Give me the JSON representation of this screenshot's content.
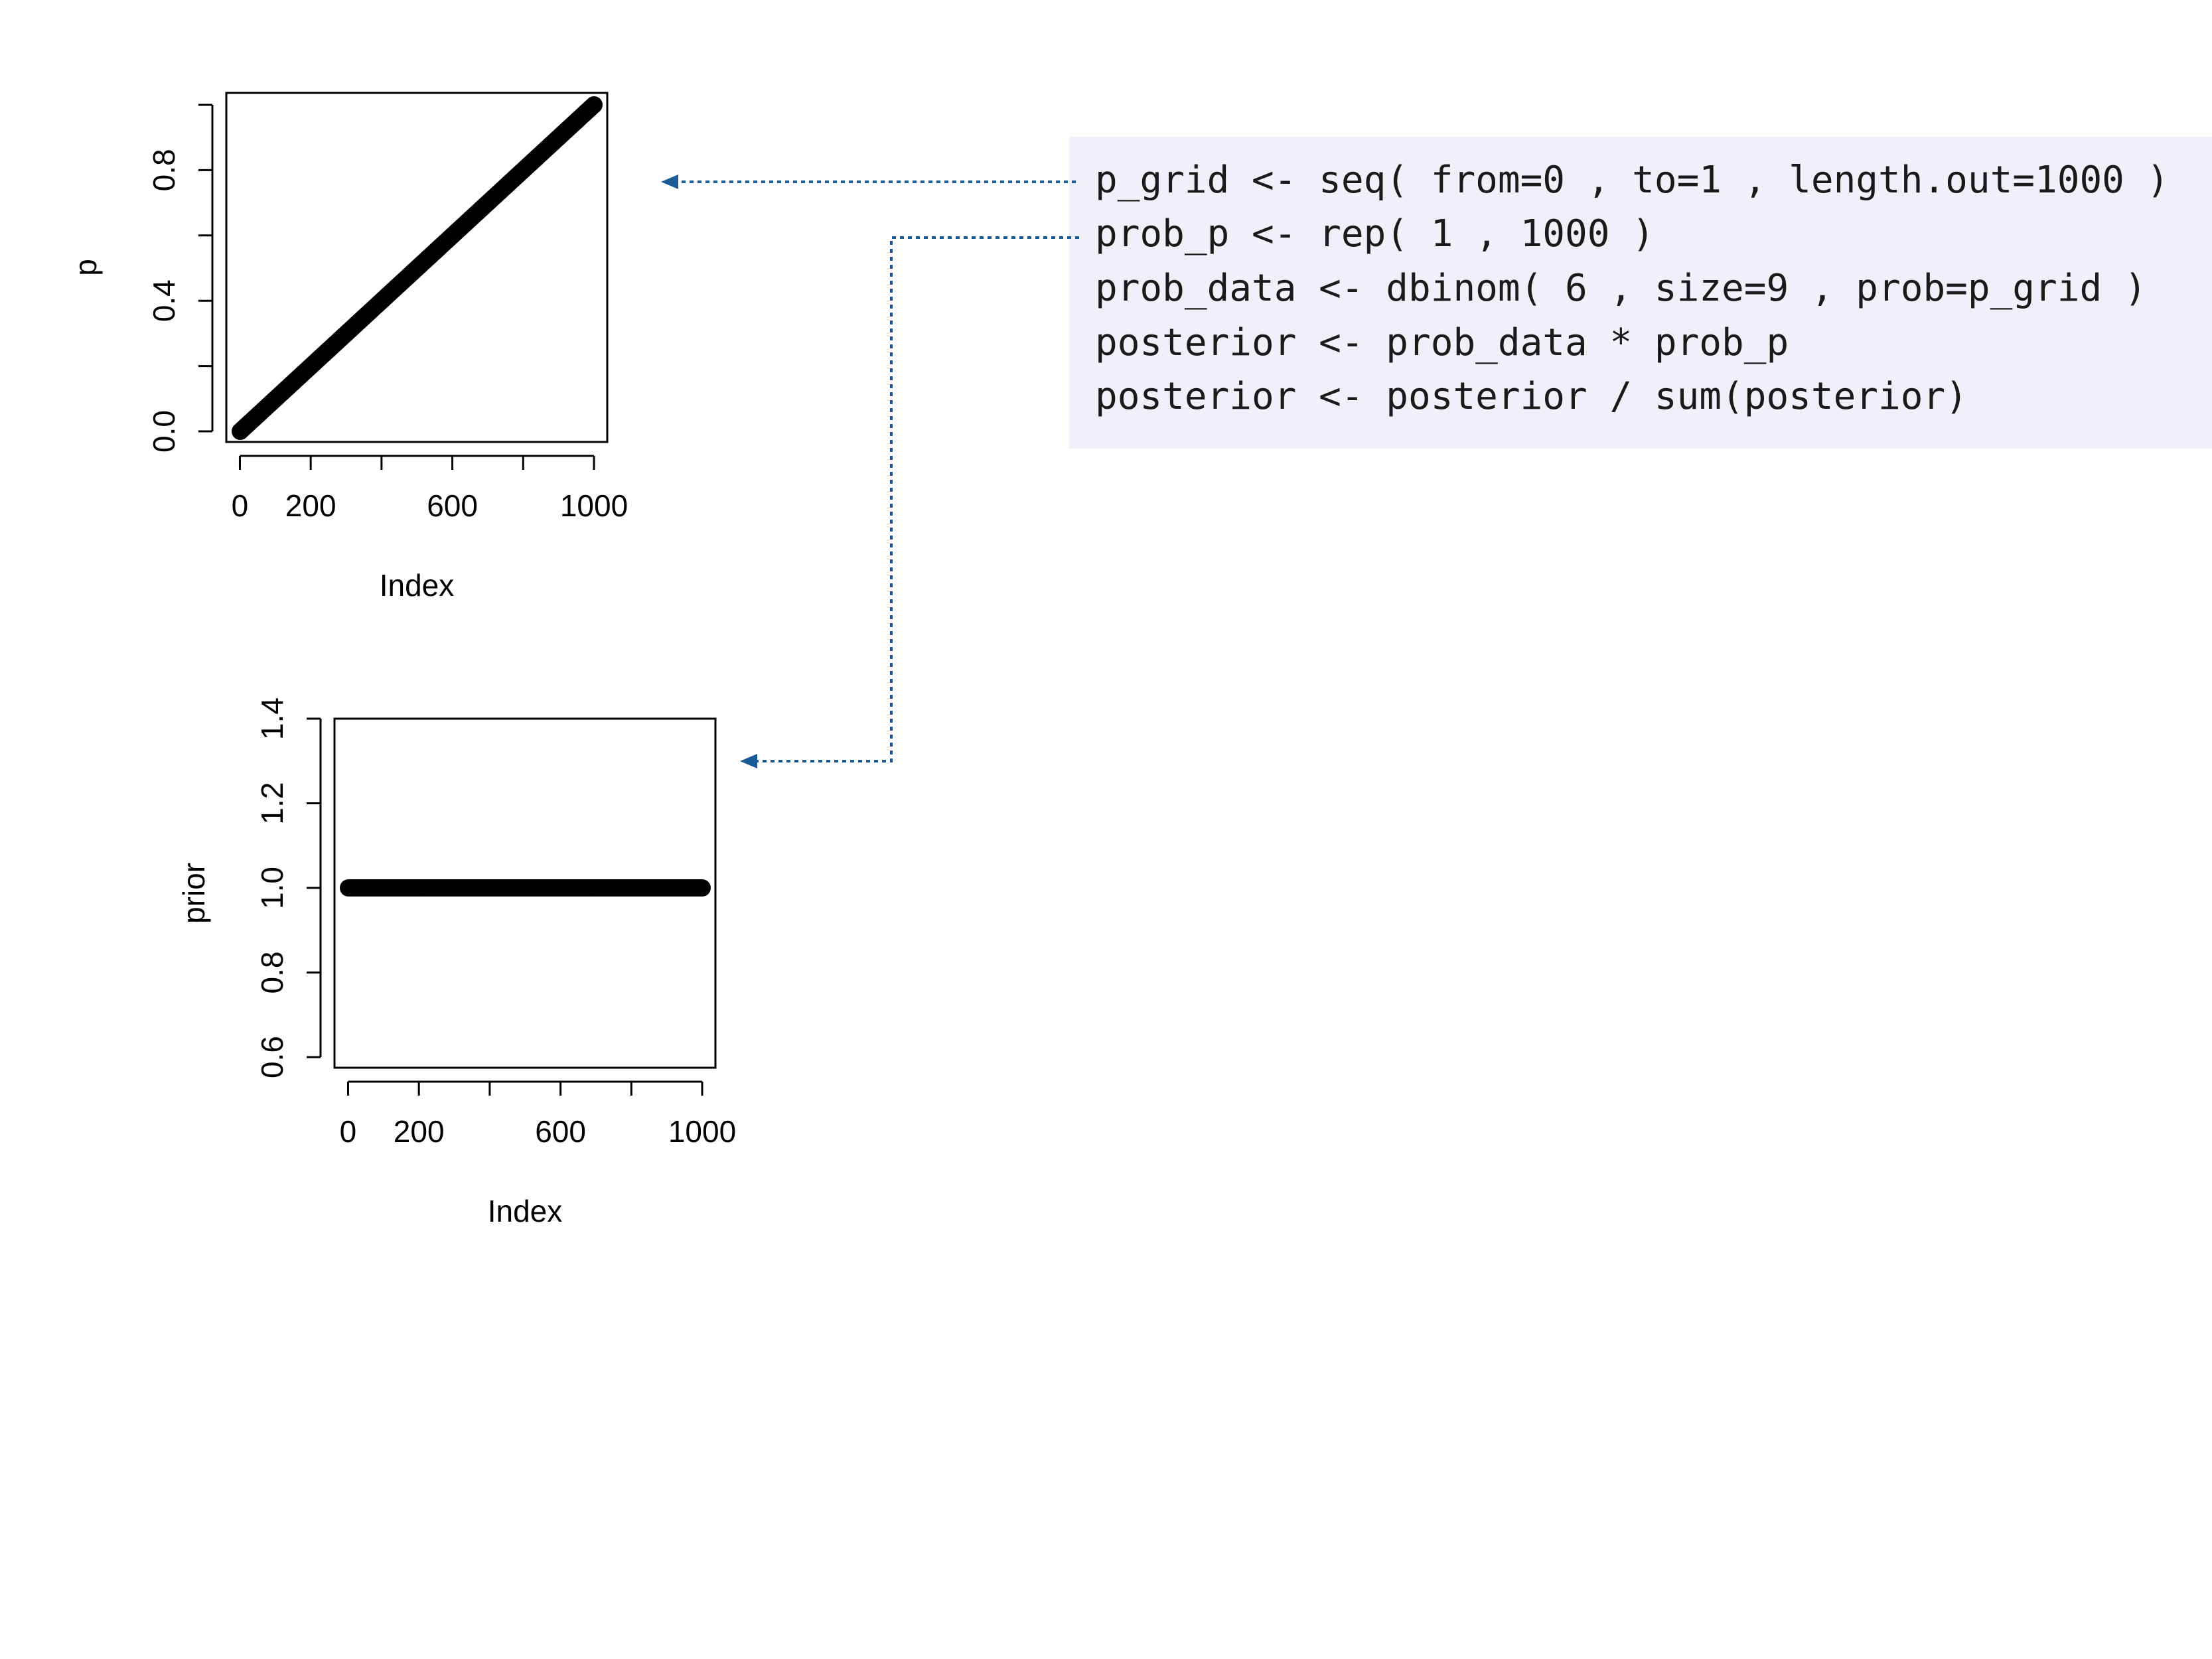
{
  "code_panel": {
    "lines": [
      "p_grid <- seq( from=0 , to=1 , length.out=1000 )",
      "prob_p <- rep( 1 , 1000 )",
      "prob_data <- dbinom( 6 , size=9 , prob=p_grid )",
      "posterior <- prob_data * prob_p",
      "posterior <- posterior / sum(posterior)"
    ]
  },
  "colors": {
    "connector": "#1a5a96",
    "code_background": "#eff0fa",
    "points": "#000000"
  },
  "chart_data": [
    {
      "type": "scatter",
      "title": "",
      "xlabel": "Index",
      "ylabel": "p",
      "xlim": [
        1,
        1000
      ],
      "ylim": [
        0,
        1
      ],
      "x_ticks": [
        0,
        200,
        400,
        600,
        800,
        1000
      ],
      "x_tick_labels": [
        "0",
        "200",
        "",
        "600",
        "",
        "1000"
      ],
      "y_ticks": [
        0,
        0.2,
        0.4,
        0.6,
        0.8,
        1.0
      ],
      "y_tick_labels": [
        "0.0",
        "",
        "0.4",
        "",
        "0.8",
        ""
      ],
      "series": [
        {
          "x_from": 1,
          "x_to": 1000,
          "y_from": 0,
          "y_to": 1,
          "n": 1000
        }
      ]
    },
    {
      "type": "scatter",
      "title": "",
      "xlabel": "Index",
      "ylabel": "prior",
      "xlim": [
        1,
        1000
      ],
      "ylim": [
        0.6,
        1.4
      ],
      "x_ticks": [
        0,
        200,
        400,
        600,
        800,
        1000
      ],
      "x_tick_labels": [
        "0",
        "200",
        "",
        "600",
        "",
        "1000"
      ],
      "y_ticks": [
        0.6,
        0.8,
        1.0,
        1.2,
        1.4
      ],
      "y_tick_labels": [
        "0.6",
        "0.8",
        "1.0",
        "1.2",
        "1.4"
      ],
      "series": [
        {
          "x_from": 1,
          "x_to": 1000,
          "y_from": 1,
          "y_to": 1,
          "n": 1000
        }
      ]
    }
  ]
}
